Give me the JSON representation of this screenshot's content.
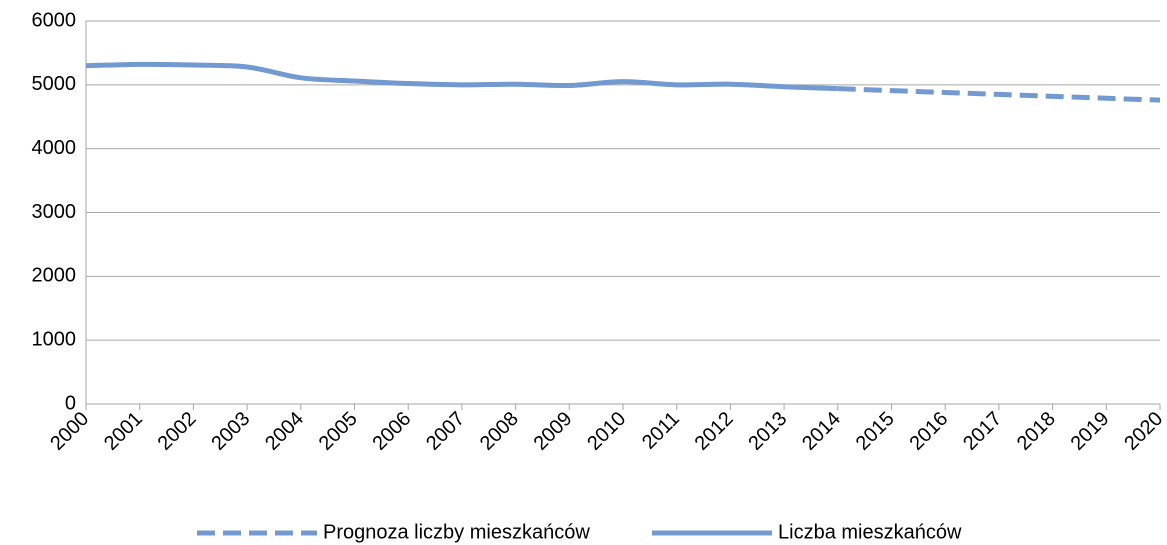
{
  "chart_data": {
    "type": "line",
    "categories": [
      "2000",
      "2001",
      "2002",
      "2003",
      "2004",
      "2005",
      "2006",
      "2007",
      "2008",
      "2009",
      "2010",
      "2011",
      "2012",
      "2013",
      "2014",
      "2015",
      "2016",
      "2017",
      "2018",
      "2019",
      "2020"
    ],
    "series": [
      {
        "name": "Prognoza liczby mieszkańców",
        "color": "#7399d1",
        "dashed": true,
        "values": [
          null,
          null,
          null,
          null,
          null,
          null,
          null,
          null,
          null,
          null,
          null,
          null,
          null,
          null,
          4940,
          4910,
          4880,
          4850,
          4820,
          4790,
          4760
        ]
      },
      {
        "name": "Liczba mieszkańców",
        "color": "#7399d1",
        "dashed": false,
        "values": [
          5300,
          5320,
          5310,
          5280,
          5110,
          5060,
          5020,
          5000,
          5010,
          4990,
          5050,
          5000,
          5010,
          4970,
          4940,
          null,
          null,
          null,
          null,
          null,
          null
        ]
      }
    ],
    "ylim": [
      0,
      6000
    ],
    "yticks": [
      0,
      1000,
      2000,
      3000,
      4000,
      5000,
      6000
    ],
    "grid": true,
    "legend": "bottom"
  }
}
